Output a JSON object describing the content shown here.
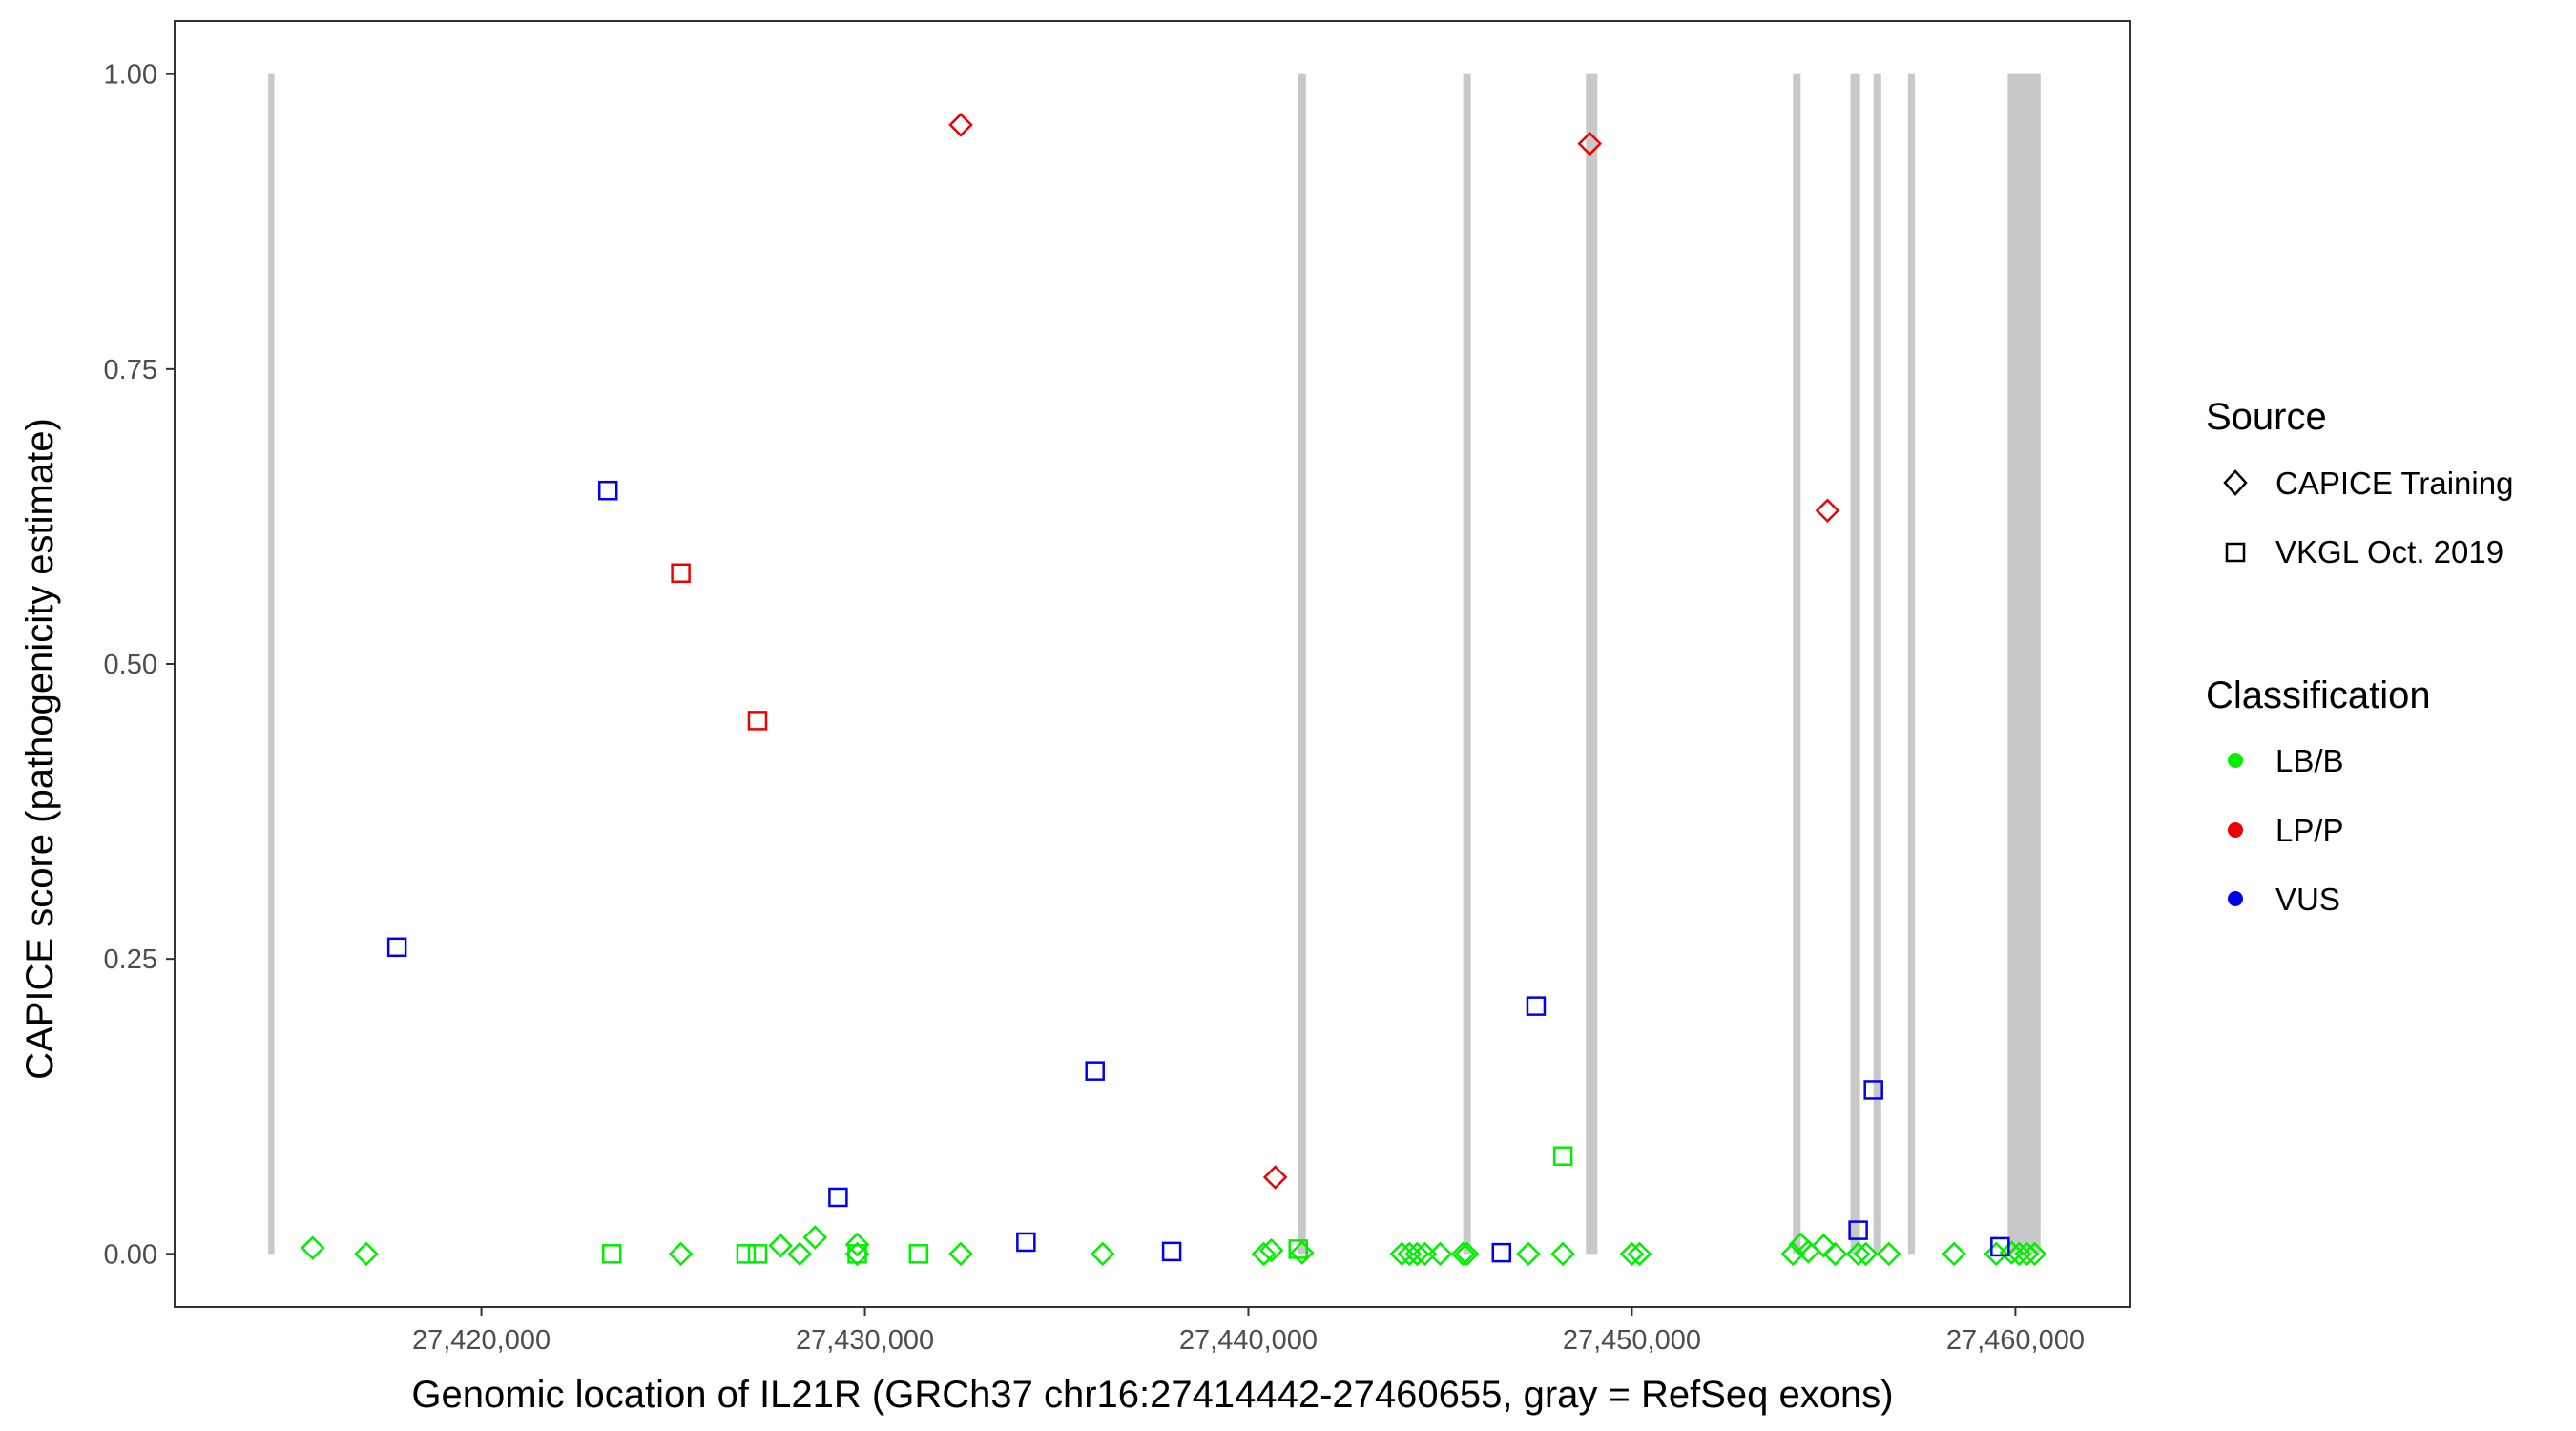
{
  "chart_data": {
    "type": "scatter",
    "title": "",
    "xlabel": "Genomic location of IL21R (GRCh37 chr16:27414442-27460655, gray = RefSeq exons)",
    "ylabel": "CAPICE score (pathogenicity estimate)",
    "xlim": [
      27412000,
      27463000
    ],
    "ylim": [
      -0.045,
      1.045
    ],
    "x_ticks": [
      {
        "value": 27420000,
        "label": "27,420,000"
      },
      {
        "value": 27430000,
        "label": "27,430,000"
      },
      {
        "value": 27440000,
        "label": "27,440,000"
      },
      {
        "value": 27450000,
        "label": "27,450,000"
      },
      {
        "value": 27460000,
        "label": "27,460,000"
      }
    ],
    "y_ticks": [
      {
        "value": 0,
        "label": "0.00"
      },
      {
        "value": 0.25,
        "label": "0.25"
      },
      {
        "value": 0.5,
        "label": "0.50"
      },
      {
        "value": 0.75,
        "label": "0.75"
      },
      {
        "value": 1,
        "label": "1.00"
      }
    ],
    "grid": false,
    "legend_position": "right",
    "exon_color": "#c8c8c8",
    "exons": [
      [
        27414442,
        27414600
      ],
      [
        27441300,
        27441500
      ],
      [
        27445600,
        27445800
      ],
      [
        27448800,
        27449100
      ],
      [
        27454200,
        27454400
      ],
      [
        27455700,
        27455950
      ],
      [
        27456300,
        27456500
      ],
      [
        27457200,
        27457380
      ],
      [
        27459800,
        27460655
      ]
    ],
    "legend": {
      "source_title": "Source",
      "source_items": [
        {
          "label": "CAPICE Training",
          "shape": "diamond"
        },
        {
          "label": "VKGL Oct. 2019",
          "shape": "square"
        }
      ],
      "class_title": "Classification",
      "class_items": [
        {
          "label": "LB/B",
          "color": "#00ee00"
        },
        {
          "label": "LP/P",
          "color": "#ee0000"
        },
        {
          "label": "VUS",
          "color": "#0000ee"
        }
      ]
    },
    "series": [
      {
        "source": "CAPICE Training",
        "classification": "LB/B",
        "shape": "diamond",
        "color": "#00ee00",
        "points": [
          [
            27415600,
            0.005
          ],
          [
            27417000,
            0.0
          ],
          [
            27425200,
            0.0
          ],
          [
            27427800,
            0.007
          ],
          [
            27428300,
            0.0
          ],
          [
            27428700,
            0.014
          ],
          [
            27429800,
            0.008
          ],
          [
            27429800,
            0.0
          ],
          [
            27432500,
            0.0
          ],
          [
            27436200,
            0.0
          ],
          [
            27440400,
            0.0
          ],
          [
            27440600,
            0.003
          ],
          [
            27441400,
            0.001
          ],
          [
            27444000,
            0.0
          ],
          [
            27444200,
            0.0
          ],
          [
            27444400,
            0.0
          ],
          [
            27444600,
            0.0
          ],
          [
            27445000,
            0.0
          ],
          [
            27445600,
            0.0
          ],
          [
            27445700,
            0.0
          ],
          [
            27447300,
            0.0
          ],
          [
            27448200,
            0.0
          ],
          [
            27450000,
            0.0
          ],
          [
            27450200,
            0.0
          ],
          [
            27454200,
            0.0
          ],
          [
            27454400,
            0.008
          ],
          [
            27454600,
            0.002
          ],
          [
            27455000,
            0.007
          ],
          [
            27455300,
            0.0
          ],
          [
            27455900,
            0.0
          ],
          [
            27456100,
            0.0
          ],
          [
            27456700,
            0.0
          ],
          [
            27458400,
            0.0
          ],
          [
            27459500,
            0.0
          ],
          [
            27459900,
            0.001
          ],
          [
            27460100,
            0.0
          ],
          [
            27460300,
            0.0
          ],
          [
            27460500,
            0.0
          ]
        ]
      },
      {
        "source": "CAPICE Training",
        "classification": "LP/P",
        "shape": "diamond",
        "color": "#ee0000",
        "points": [
          [
            27432500,
            0.957
          ],
          [
            27440700,
            0.065
          ],
          [
            27448900,
            0.941
          ],
          [
            27455100,
            0.63
          ]
        ]
      },
      {
        "source": "VKGL Oct. 2019",
        "classification": "LB/B",
        "shape": "square",
        "color": "#00ee00",
        "points": [
          [
            27423400,
            0.0
          ],
          [
            27426900,
            0.0
          ],
          [
            27427200,
            0.0
          ],
          [
            27429800,
            0.0
          ],
          [
            27431400,
            0.0
          ],
          [
            27441300,
            0.004
          ],
          [
            27448200,
            0.083
          ]
        ]
      },
      {
        "source": "VKGL Oct. 2019",
        "classification": "LP/P",
        "shape": "square",
        "color": "#ee0000",
        "points": [
          [
            27425200,
            0.577
          ],
          [
            27427200,
            0.452
          ]
        ]
      },
      {
        "source": "VKGL Oct. 2019",
        "classification": "VUS",
        "shape": "square",
        "color": "#0000ee",
        "points": [
          [
            27417800,
            0.26
          ],
          [
            27423300,
            0.647
          ],
          [
            27429300,
            0.048
          ],
          [
            27434200,
            0.01
          ],
          [
            27436000,
            0.155
          ],
          [
            27438000,
            0.002
          ],
          [
            27446600,
            0.001
          ],
          [
            27447500,
            0.21
          ],
          [
            27455900,
            0.02
          ],
          [
            27456300,
            0.139
          ],
          [
            27459600,
            0.006
          ]
        ]
      }
    ]
  }
}
